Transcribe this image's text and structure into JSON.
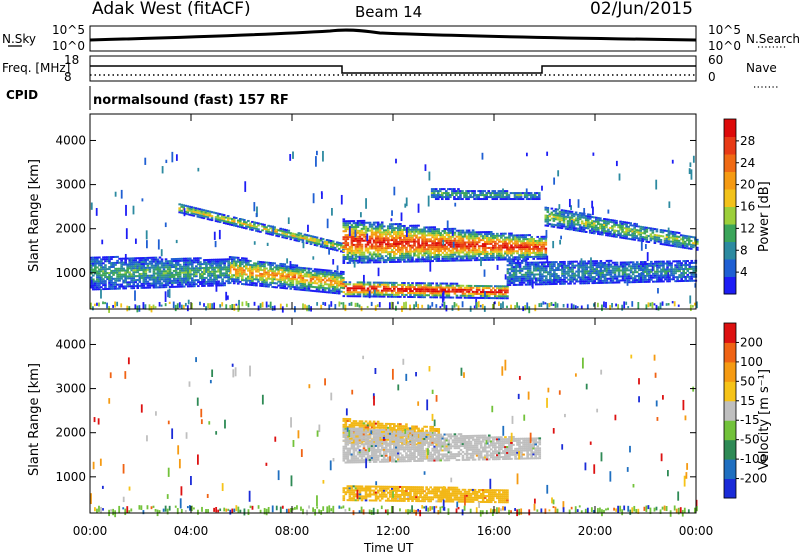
{
  "header": {
    "site": "Adak West (fitACF)",
    "beam": "Beam 14",
    "date": "02/Jun/2015"
  },
  "noise_panel": {
    "left_label": "N.Sky",
    "right_label": "N.Search",
    "left_ticks": [
      "10^5",
      "10^0"
    ],
    "right_ticks": [
      "10^5",
      "10^0"
    ]
  },
  "freq_panel": {
    "left_label": "Freq. [MHz]",
    "right_label": "Nave",
    "left_ticks": [
      "18",
      "8"
    ],
    "right_ticks": [
      "60",
      "0"
    ]
  },
  "cpid": {
    "label": "CPID",
    "text": "normalsound (fast) 157 RF"
  },
  "chart_data": [
    {
      "type": "heatmap",
      "name": "power",
      "ylabel": "Slant Range [km]",
      "ylim": [
        180,
        4600
      ],
      "yticks": [
        1000,
        2000,
        3000,
        4000
      ],
      "colorbar": {
        "label": "Power [dB]",
        "ticks": [
          4,
          8,
          12,
          16,
          20,
          24,
          28
        ],
        "colors": [
          "#1d1df5",
          "#1f5fd3",
          "#2c8aa0",
          "#3ba55a",
          "#9ccf3a",
          "#f2c21a",
          "#f59a12",
          "#f06a14",
          "#e83a16",
          "#dd0a0a"
        ]
      },
      "bands": [
        {
          "x": [
            3.5,
            10.0
          ],
          "y_top": [
            2550,
            1650
          ],
          "y_bot": [
            2350,
            1450
          ],
          "core": 0.45
        },
        {
          "x": [
            10.0,
            18.0
          ],
          "y_top": [
            2200,
            1800
          ],
          "y_bot": [
            1200,
            1300
          ],
          "core": 0.75
        },
        {
          "x": [
            10.0,
            16.5
          ],
          "y_top": [
            800,
            700
          ],
          "y_bot": [
            450,
            400
          ],
          "core": 0.85
        },
        {
          "x": [
            5.5,
            10.0
          ],
          "y_top": [
            1350,
            1000
          ],
          "y_bot": [
            750,
            500
          ],
          "core": 0.55
        },
        {
          "x": [
            0.0,
            5.5
          ],
          "y_top": [
            1350,
            1300
          ],
          "y_bot": [
            600,
            700
          ],
          "core": 0.25
        },
        {
          "x": [
            18.0,
            24.0
          ],
          "y_top": [
            2500,
            1800
          ],
          "y_bot": [
            2050,
            1500
          ],
          "core": 0.35
        },
        {
          "x": [
            16.5,
            24.0
          ],
          "y_top": [
            1250,
            1250
          ],
          "y_bot": [
            700,
            800
          ],
          "core": 0.2
        },
        {
          "x": [
            13.5,
            17.8
          ],
          "y_top": [
            2900,
            2800
          ],
          "y_bot": [
            2650,
            2650
          ],
          "core": 0.25
        }
      ]
    },
    {
      "type": "heatmap",
      "name": "velocity",
      "ylabel": "Slant Range [km]",
      "xlabel": "Time UT",
      "ylim": [
        180,
        4600
      ],
      "yticks": [
        1000,
        2000,
        3000,
        4000
      ],
      "xticks": [
        "00:00",
        "04:00",
        "08:00",
        "12:00",
        "16:00",
        "20:00",
        "00:00"
      ],
      "xlim": [
        0,
        24
      ],
      "colorbar": {
        "label": "Velocity [m s⁻¹]",
        "ticks": [
          200,
          100,
          50,
          15,
          -15,
          -50,
          -100,
          -200
        ],
        "colors": [
          "#1a2bd8",
          "#1f6fc0",
          "#2e8a55",
          "#72c23a",
          "#bfbfbf",
          "#f6c318",
          "#f59a12",
          "#f06314",
          "#dd1111"
        ]
      },
      "bands": [
        {
          "x": [
            10.0,
            13.8
          ],
          "y_top": [
            2300,
            2100
          ],
          "y_bot": [
            1750,
            1700
          ],
          "color": "#f2b716"
        },
        {
          "x": [
            10.0,
            17.8
          ],
          "y_top": [
            2100,
            1850
          ],
          "y_bot": [
            1300,
            1400
          ],
          "color": "#bfbfbf"
        },
        {
          "x": [
            10.0,
            16.5
          ],
          "y_top": [
            800,
            700
          ],
          "y_bot": [
            450,
            400
          ],
          "color": "#f2b716"
        }
      ]
    }
  ]
}
